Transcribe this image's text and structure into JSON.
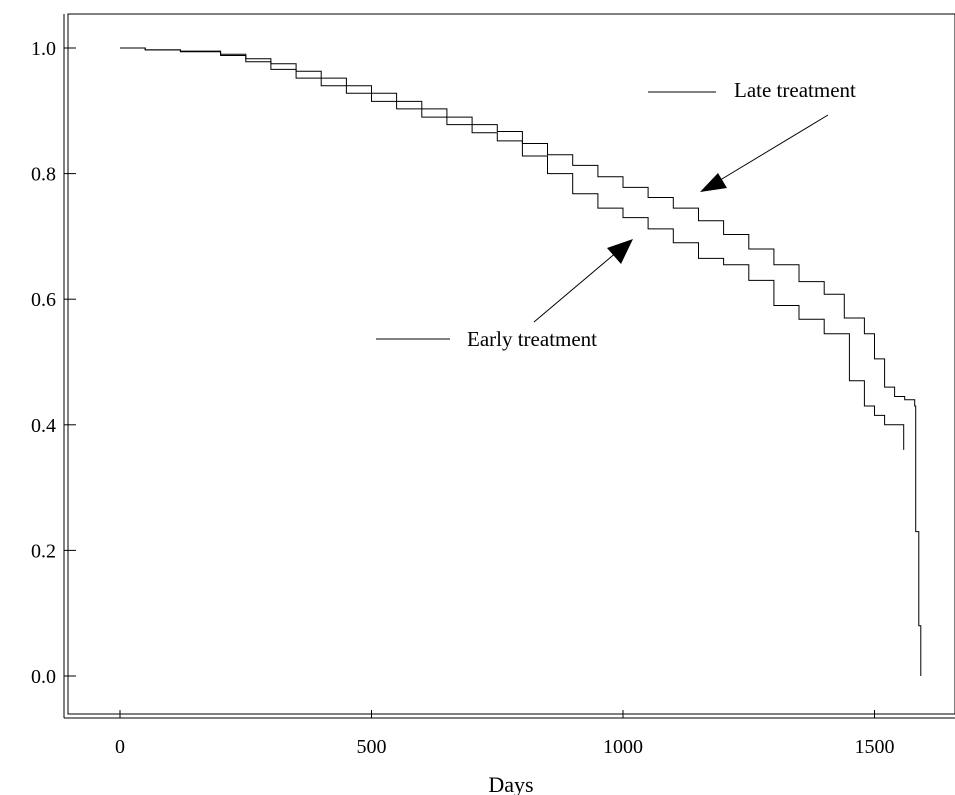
{
  "chart_data": {
    "type": "line",
    "title": "",
    "xlabel": "Days",
    "ylabel": "",
    "xlim": [
      -100,
      1660
    ],
    "ylim": [
      -0.06,
      1.06
    ],
    "x_ticks": [
      {
        "value": 0,
        "label": "0"
      },
      {
        "value": 500,
        "label": "500"
      },
      {
        "value": 1000,
        "label": "1000"
      },
      {
        "value": 1500,
        "label": "1500"
      }
    ],
    "y_ticks": [
      {
        "value": 0.0,
        "label": "0.0"
      },
      {
        "value": 0.2,
        "label": "0.2"
      },
      {
        "value": 0.4,
        "label": "0.4"
      },
      {
        "value": 0.6,
        "label": "0.6"
      },
      {
        "value": 0.8,
        "label": "0.8"
      },
      {
        "value": 1.0,
        "label": "1.0"
      }
    ],
    "grid": false,
    "line_color": "#000000",
    "series": [
      {
        "name": "Late treatment",
        "step": true,
        "points": [
          [
            0,
            1.0
          ],
          [
            50,
            0.997
          ],
          [
            120,
            0.995
          ],
          [
            200,
            0.99
          ],
          [
            250,
            0.983
          ],
          [
            300,
            0.975
          ],
          [
            350,
            0.963
          ],
          [
            400,
            0.952
          ],
          [
            450,
            0.94
          ],
          [
            500,
            0.928
          ],
          [
            550,
            0.915
          ],
          [
            600,
            0.903
          ],
          [
            650,
            0.89
          ],
          [
            700,
            0.878
          ],
          [
            750,
            0.867
          ],
          [
            800,
            0.848
          ],
          [
            850,
            0.83
          ],
          [
            900,
            0.813
          ],
          [
            950,
            0.795
          ],
          [
            1000,
            0.778
          ],
          [
            1050,
            0.762
          ],
          [
            1100,
            0.745
          ],
          [
            1150,
            0.725
          ],
          [
            1200,
            0.703
          ],
          [
            1250,
            0.68
          ],
          [
            1300,
            0.655
          ],
          [
            1350,
            0.628
          ],
          [
            1400,
            0.608
          ],
          [
            1440,
            0.57
          ],
          [
            1480,
            0.545
          ],
          [
            1500,
            0.505
          ],
          [
            1520,
            0.46
          ],
          [
            1540,
            0.445
          ],
          [
            1560,
            0.44
          ],
          [
            1580,
            0.43
          ],
          [
            1582,
            0.23
          ],
          [
            1588,
            0.08
          ],
          [
            1592,
            0.0
          ]
        ]
      },
      {
        "name": "Early treatment",
        "step": true,
        "points": [
          [
            0,
            1.0
          ],
          [
            50,
            0.997
          ],
          [
            120,
            0.994
          ],
          [
            200,
            0.988
          ],
          [
            250,
            0.978
          ],
          [
            300,
            0.966
          ],
          [
            350,
            0.952
          ],
          [
            400,
            0.94
          ],
          [
            450,
            0.928
          ],
          [
            500,
            0.915
          ],
          [
            550,
            0.903
          ],
          [
            600,
            0.89
          ],
          [
            650,
            0.878
          ],
          [
            700,
            0.865
          ],
          [
            750,
            0.852
          ],
          [
            800,
            0.828
          ],
          [
            850,
            0.8
          ],
          [
            900,
            0.768
          ],
          [
            950,
            0.745
          ],
          [
            1000,
            0.73
          ],
          [
            1050,
            0.712
          ],
          [
            1100,
            0.69
          ],
          [
            1150,
            0.665
          ],
          [
            1200,
            0.655
          ],
          [
            1250,
            0.63
          ],
          [
            1300,
            0.59
          ],
          [
            1350,
            0.568
          ],
          [
            1400,
            0.545
          ],
          [
            1450,
            0.47
          ],
          [
            1480,
            0.43
          ],
          [
            1500,
            0.415
          ],
          [
            1520,
            0.4
          ],
          [
            1555,
            0.4
          ],
          [
            1558,
            0.36
          ]
        ]
      }
    ],
    "annotations": [
      {
        "text": "Late treatment",
        "target_series": "Late treatment",
        "target_point": [
          1150,
          0.775
        ]
      },
      {
        "text": "Early treatment",
        "target_series": "Early treatment",
        "target_point": [
          1020,
          0.72
        ]
      }
    ]
  }
}
